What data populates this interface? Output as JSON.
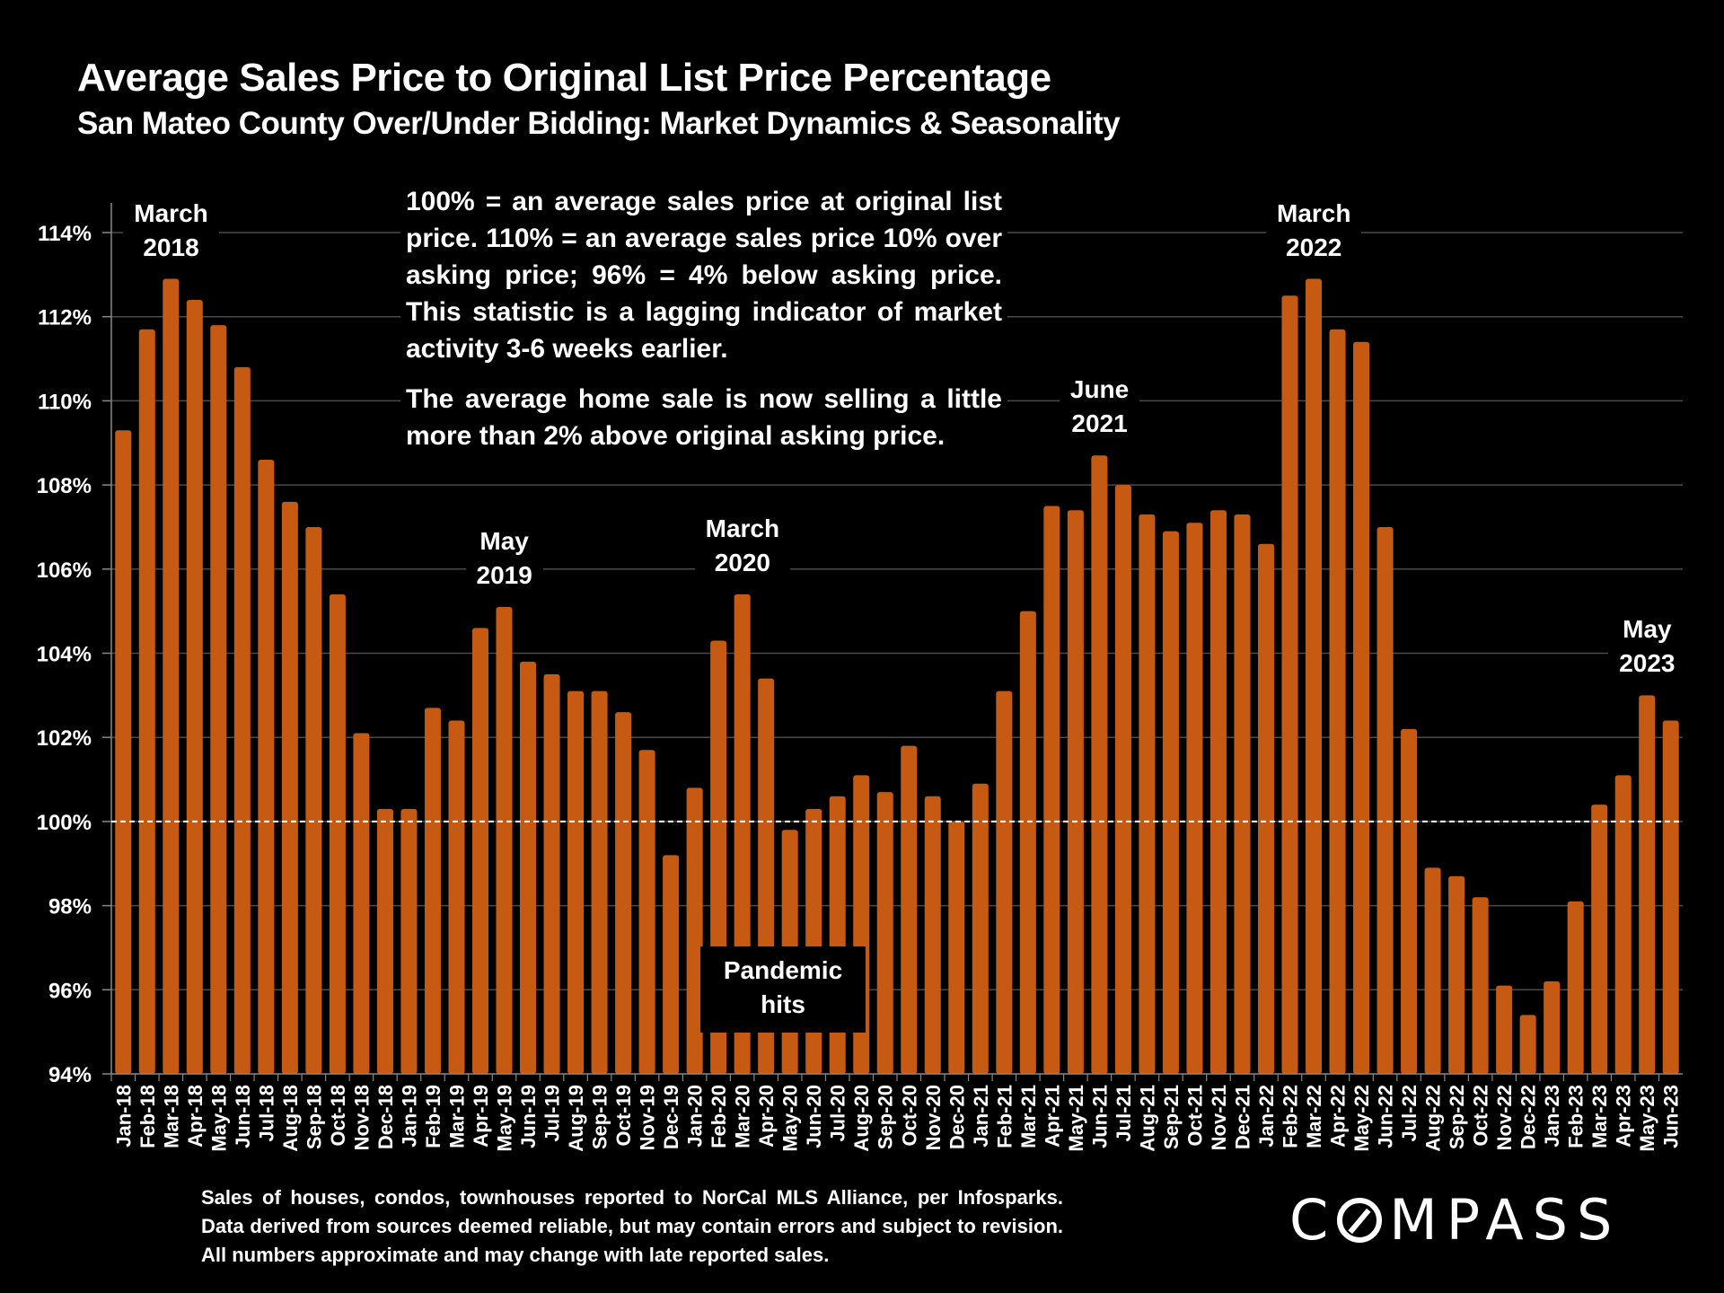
{
  "chart_data": {
    "type": "bar",
    "title": "Average Sales Price to Original List Price Percentage",
    "subtitle": "San Mateo County Over/Under Bidding: Market Dynamics & Seasonality",
    "xlabel": "",
    "ylabel": "",
    "ylim": [
      94,
      114
    ],
    "yticks": [
      94,
      96,
      98,
      100,
      102,
      104,
      106,
      108,
      110,
      112,
      114
    ],
    "ytick_labels": [
      "94%",
      "96%",
      "98%",
      "100%",
      "102%",
      "104%",
      "106%",
      "108%",
      "110%",
      "112%",
      "114%"
    ],
    "grid": true,
    "reference_line": {
      "value": 100,
      "style": "dashed"
    },
    "bar_color": "#c65a12",
    "categories": [
      "Jan-18",
      "Feb-18",
      "Mar-18",
      "Apr-18",
      "May-18",
      "Jun-18",
      "Jul-18",
      "Aug-18",
      "Sep-18",
      "Oct-18",
      "Nov-18",
      "Dec-18",
      "Jan-19",
      "Feb-19",
      "Mar-19",
      "Apr-19",
      "May-19",
      "Jun-19",
      "Jul-19",
      "Aug-19",
      "Sep-19",
      "Oct-19",
      "Nov-19",
      "Dec-19",
      "Jan-20",
      "Feb-20",
      "Mar-20",
      "Apr-20",
      "May-20",
      "Jun-20",
      "Jul-20",
      "Aug-20",
      "Sep-20",
      "Oct-20",
      "Nov-20",
      "Dec-20",
      "Jan-21",
      "Feb-21",
      "Mar-21",
      "Apr-21",
      "May-21",
      "Jun-21",
      "Jul-21",
      "Aug-21",
      "Sep-21",
      "Oct-21",
      "Nov-21",
      "Dec-21",
      "Jan-22",
      "Feb-22",
      "Mar-22",
      "Apr-22",
      "May-22",
      "Jun-22",
      "Jul-22",
      "Aug-22",
      "Sep-22",
      "Oct-22",
      "Nov-22",
      "Dec-22",
      "Jan-23",
      "Feb-23",
      "Mar-23",
      "Apr-23",
      "May-23",
      "Jun-23"
    ],
    "values": [
      109.3,
      111.7,
      112.9,
      112.4,
      111.8,
      110.8,
      108.6,
      107.6,
      107.0,
      105.4,
      102.1,
      100.3,
      100.3,
      102.7,
      102.4,
      104.6,
      105.1,
      103.8,
      103.5,
      103.1,
      103.1,
      102.6,
      101.7,
      99.2,
      100.8,
      104.3,
      105.4,
      103.4,
      99.8,
      100.3,
      100.6,
      101.1,
      100.7,
      101.8,
      100.6,
      100.0,
      100.9,
      103.1,
      105.0,
      107.5,
      107.4,
      108.7,
      108.0,
      107.3,
      106.9,
      107.1,
      107.4,
      107.3,
      106.6,
      112.5,
      112.9,
      111.7,
      111.4,
      107.0,
      102.2,
      98.9,
      98.7,
      98.2,
      96.1,
      95.4,
      96.2,
      98.1,
      100.4,
      101.1,
      103.0,
      102.4
    ],
    "annotations": [
      {
        "line1": "March",
        "line2": "2018",
        "category": "Mar-18"
      },
      {
        "line1": "May",
        "line2": "2019",
        "category": "May-19"
      },
      {
        "line1": "March",
        "line2": "2020",
        "category": "Mar-20"
      },
      {
        "line1": "June",
        "line2": "2021",
        "category": "Jun-21"
      },
      {
        "line1": "March",
        "line2": "2022",
        "category": "Mar-22"
      },
      {
        "line1": "May",
        "line2": "2023",
        "category": "May-23"
      }
    ],
    "callout": {
      "line1": "Pandemic",
      "line2": "hits"
    }
  },
  "notes": {
    "definition": "100% = an average sales price at original list price. 110% = an average sales price 10% over asking price; 96% = 4% below asking price. This statistic is a lagging indicator of market activity 3-6 weeks earlier.",
    "current": "The average home sale is now selling a little more than 2% above original asking price."
  },
  "footer": {
    "source": "Sales of houses, condos, townhouses reported to NorCal MLS Alliance, per Infosparks. Data derived from sources deemed reliable, but may contain errors and subject to revision. All numbers approximate and may change with late reported sales.",
    "logo_prefix": "C",
    "logo_suffix": "MPASS"
  }
}
